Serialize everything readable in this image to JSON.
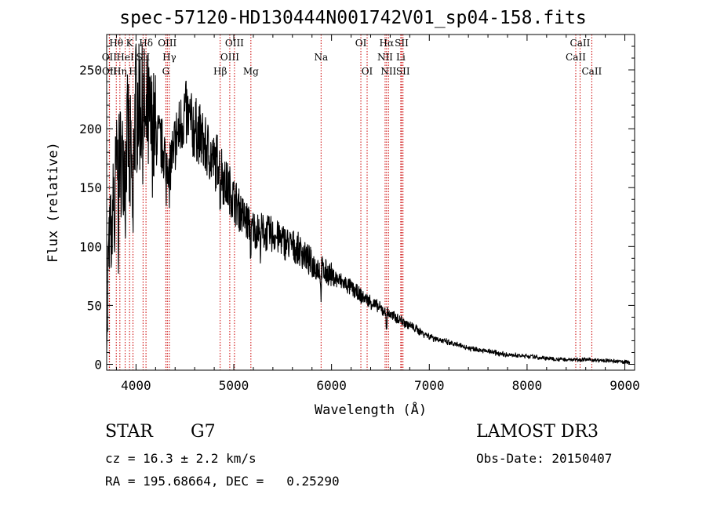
{
  "chart_data": {
    "type": "line",
    "title": "spec-57120-HD130444N001742V01_sp04-158.fits",
    "xlabel": "Wavelength (Å)",
    "ylabel": "Flux (relative)",
    "xlim": [
      3700,
      9100
    ],
    "ylim": [
      -5,
      280
    ],
    "x_ticks": [
      4000,
      5000,
      6000,
      7000,
      8000,
      9000
    ],
    "y_ticks": [
      0,
      50,
      100,
      150,
      200,
      250
    ],
    "line_color": "#000000",
    "marker_color": "#cc0000",
    "spectrum_envelope": {
      "x": [
        3700,
        3740,
        3780,
        3820,
        3860,
        3900,
        3930,
        3960,
        3990,
        4020,
        4060,
        4100,
        4150,
        4200,
        4260,
        4300,
        4350,
        4400,
        4450,
        4500,
        4550,
        4600,
        4650,
        4700,
        4750,
        4800,
        4850,
        4900,
        4950,
        5000,
        5100,
        5200,
        5300,
        5400,
        5500,
        5600,
        5700,
        5800,
        5900,
        6000,
        6100,
        6200,
        6300,
        6400,
        6500,
        6600,
        6700,
        6800,
        6900,
        7000,
        7200,
        7400,
        7600,
        7800,
        8000,
        8200,
        8400,
        8600,
        8800,
        9000,
        9100
      ],
      "y": [
        70,
        120,
        150,
        180,
        170,
        185,
        200,
        150,
        215,
        225,
        215,
        210,
        200,
        195,
        185,
        180,
        170,
        190,
        200,
        215,
        205,
        200,
        195,
        185,
        180,
        170,
        175,
        155,
        150,
        140,
        125,
        115,
        112,
        110,
        105,
        100,
        95,
        85,
        80,
        75,
        70,
        65,
        58,
        53,
        47,
        42,
        38,
        33,
        28,
        24,
        18,
        14,
        11,
        8,
        7,
        5,
        4,
        4,
        3,
        2,
        2
      ]
    },
    "spectral_lines": [
      {
        "label": "Hθ",
        "wavelength": 3798,
        "row": 0
      },
      {
        "label": "OII",
        "wavelength": 3727,
        "row": 1
      },
      {
        "label": "OII",
        "wavelength": 3729,
        "row": 2
      },
      {
        "label": "Hη",
        "wavelength": 3835,
        "row": 2
      },
      {
        "label": "HeI",
        "wavelength": 3889,
        "row": 1
      },
      {
        "label": "K",
        "wavelength": 3934,
        "row": 0
      },
      {
        "label": "H",
        "wavelength": 3969,
        "row": 2
      },
      {
        "label": "SII",
        "wavelength": 4072,
        "row": 1
      },
      {
        "label": "Hδ",
        "wavelength": 4102,
        "row": 0
      },
      {
        "label": "OIII",
        "wavelength": 4320,
        "row": 0
      },
      {
        "label": "Hγ",
        "wavelength": 4341,
        "row": 1
      },
      {
        "label": "G",
        "wavelength": 4305,
        "row": 2
      },
      {
        "label": "Hβ",
        "wavelength": 4861,
        "row": 2
      },
      {
        "label": "OIII",
        "wavelength": 5007,
        "row": 0
      },
      {
        "label": "OIII",
        "wavelength": 4959,
        "row": 1
      },
      {
        "label": "Mg",
        "wavelength": 5175,
        "row": 2
      },
      {
        "label": "Na",
        "wavelength": 5893,
        "row": 1
      },
      {
        "label": "OI",
        "wavelength": 6300,
        "row": 0
      },
      {
        "label": "OI",
        "wavelength": 6364,
        "row": 2
      },
      {
        "label": "Hα",
        "wavelength": 6563,
        "row": 0
      },
      {
        "label": "NII",
        "wavelength": 6548,
        "row": 1
      },
      {
        "label": "NII",
        "wavelength": 6583,
        "row": 2
      },
      {
        "label": "SII",
        "wavelength": 6717,
        "row": 0
      },
      {
        "label": "Li",
        "wavelength": 6708,
        "row": 1
      },
      {
        "label": "SII",
        "wavelength": 6731,
        "row": 2
      },
      {
        "label": "CaII",
        "wavelength": 8542,
        "row": 0
      },
      {
        "label": "CaII",
        "wavelength": 8498,
        "row": 1
      },
      {
        "label": "CaII",
        "wavelength": 8662,
        "row": 2
      }
    ]
  },
  "footer": {
    "object_class": "STAR",
    "subclass": "G7",
    "redshift": "cz = 16.3 ± 2.2 km/s",
    "coords": "RA = 195.68664, DEC =   0.25290",
    "survey": "LAMOST DR3",
    "obs_date": "Obs-Date: 20150407"
  }
}
